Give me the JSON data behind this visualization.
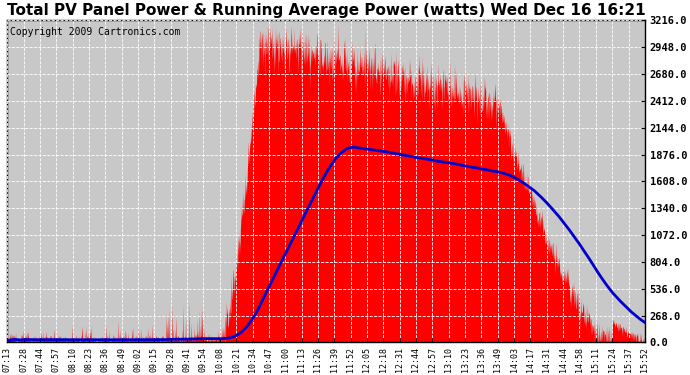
{
  "title": "Total PV Panel Power & Running Average Power (watts) Wed Dec 16 16:21",
  "copyright": "Copyright 2009 Cartronics.com",
  "y_ticks": [
    0.0,
    268.0,
    536.0,
    804.0,
    1072.0,
    1340.0,
    1608.0,
    1876.0,
    2144.0,
    2412.0,
    2680.0,
    2948.0,
    3216.0
  ],
  "ylim": [
    0.0,
    3216.0
  ],
  "x_labels": [
    "07:13",
    "07:28",
    "07:44",
    "07:57",
    "08:10",
    "08:23",
    "08:36",
    "08:49",
    "09:02",
    "09:15",
    "09:28",
    "09:41",
    "09:54",
    "10:08",
    "10:21",
    "10:34",
    "10:47",
    "11:00",
    "11:13",
    "11:26",
    "11:39",
    "11:52",
    "12:05",
    "12:18",
    "12:31",
    "12:44",
    "12:57",
    "13:10",
    "13:23",
    "13:36",
    "13:49",
    "14:03",
    "14:17",
    "14:31",
    "14:44",
    "14:58",
    "15:11",
    "15:24",
    "15:37",
    "15:52"
  ],
  "panel_color": "#ff0000",
  "avg_color": "#0000cc",
  "bg_color": "#ffffff",
  "plot_bg_color": "#c8c8c8",
  "grid_color": "#ffffff",
  "title_fontsize": 11,
  "copyright_fontsize": 7
}
